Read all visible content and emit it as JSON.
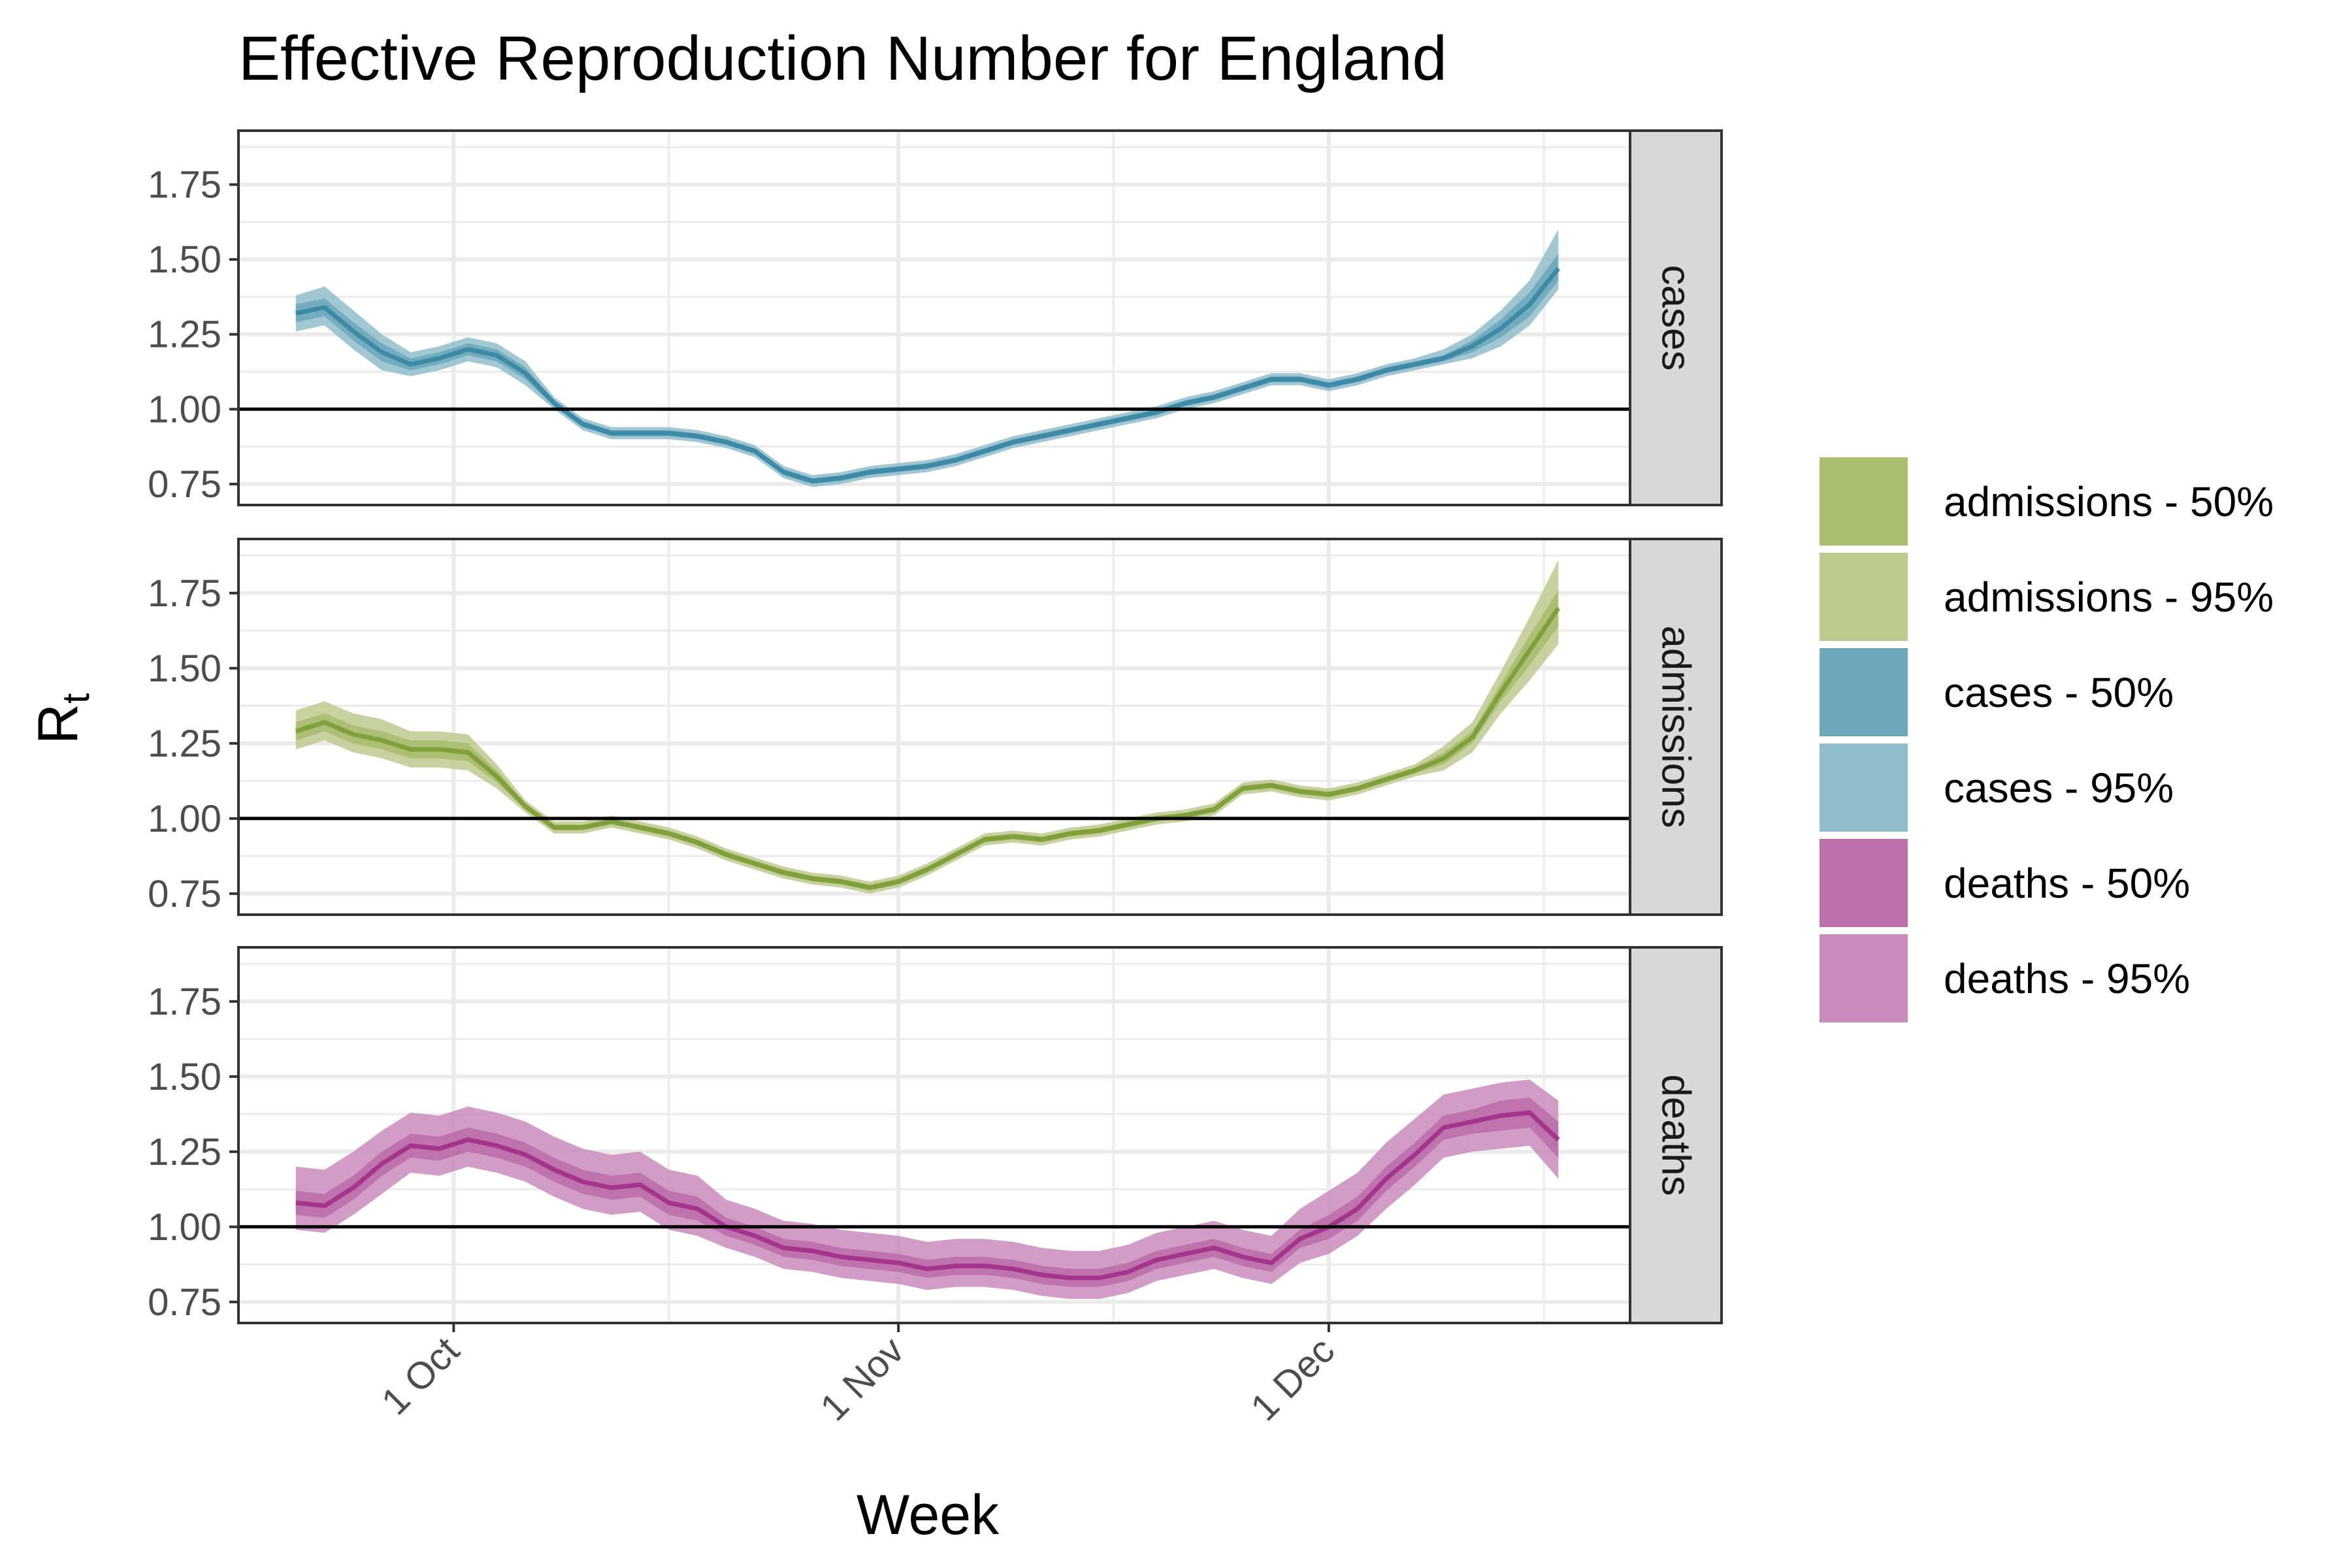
{
  "chart_data": {
    "type": "area",
    "title": "Effective Reproduction Number for England",
    "xlabel": "Week",
    "ylabel": "R",
    "ylabel_subscript": "t",
    "x_ticks": [
      {
        "label": "1 Oct",
        "date": "2021-10-01"
      },
      {
        "label": "1 Nov",
        "date": "2021-11-01"
      },
      {
        "label": "1 Dec",
        "date": "2021-12-01"
      }
    ],
    "x_minor_dates": [
      "2021-09-16",
      "2021-10-16",
      "2021-11-16",
      "2021-12-16"
    ],
    "xlim": [
      "2021-09-16",
      "2021-12-22"
    ],
    "y_ticks": [
      "0.75",
      "1.00",
      "1.25",
      "1.50",
      "1.75"
    ],
    "ylim": [
      0.68,
      1.93
    ],
    "reference_line": 1.0,
    "grid": true,
    "legend_position": "right",
    "panels": [
      {
        "strip": "cases",
        "colors": {
          "p50": "#6fa8bd",
          "p95": "#8fbdca",
          "line": "#3d8aa6"
        },
        "x": [
          "2021-09-20",
          "2021-09-22",
          "2021-09-24",
          "2021-09-26",
          "2021-09-28",
          "2021-09-30",
          "2021-10-02",
          "2021-10-04",
          "2021-10-06",
          "2021-10-08",
          "2021-10-10",
          "2021-10-12",
          "2021-10-14",
          "2021-10-16",
          "2021-10-18",
          "2021-10-20",
          "2021-10-22",
          "2021-10-24",
          "2021-10-26",
          "2021-10-28",
          "2021-10-30",
          "2021-11-01",
          "2021-11-03",
          "2021-11-05",
          "2021-11-07",
          "2021-11-09",
          "2021-11-11",
          "2021-11-13",
          "2021-11-15",
          "2021-11-17",
          "2021-11-19",
          "2021-11-21",
          "2021-11-23",
          "2021-11-25",
          "2021-11-27",
          "2021-11-29",
          "2021-12-01",
          "2021-12-03",
          "2021-12-05",
          "2021-12-07",
          "2021-12-09",
          "2021-12-11",
          "2021-12-13",
          "2021-12-15",
          "2021-12-17"
        ],
        "median": [
          1.32,
          1.34,
          1.26,
          1.19,
          1.15,
          1.17,
          1.2,
          1.18,
          1.12,
          1.02,
          0.95,
          0.92,
          0.92,
          0.92,
          0.91,
          0.89,
          0.86,
          0.79,
          0.76,
          0.77,
          0.79,
          0.8,
          0.81,
          0.83,
          0.86,
          0.89,
          0.91,
          0.93,
          0.95,
          0.97,
          0.99,
          1.02,
          1.04,
          1.07,
          1.1,
          1.1,
          1.08,
          1.1,
          1.13,
          1.15,
          1.17,
          1.21,
          1.27,
          1.35,
          1.47
        ],
        "lo50": [
          1.29,
          1.31,
          1.23,
          1.16,
          1.13,
          1.15,
          1.18,
          1.16,
          1.1,
          1.01,
          0.94,
          0.91,
          0.91,
          0.91,
          0.9,
          0.88,
          0.85,
          0.78,
          0.75,
          0.76,
          0.78,
          0.79,
          0.8,
          0.82,
          0.85,
          0.88,
          0.9,
          0.92,
          0.94,
          0.96,
          0.98,
          1.01,
          1.03,
          1.06,
          1.09,
          1.09,
          1.07,
          1.09,
          1.12,
          1.14,
          1.16,
          1.19,
          1.24,
          1.31,
          1.43
        ],
        "hi50": [
          1.35,
          1.37,
          1.29,
          1.22,
          1.17,
          1.19,
          1.22,
          1.2,
          1.14,
          1.03,
          0.96,
          0.93,
          0.93,
          0.93,
          0.92,
          0.9,
          0.87,
          0.8,
          0.77,
          0.78,
          0.8,
          0.81,
          0.82,
          0.84,
          0.87,
          0.9,
          0.92,
          0.94,
          0.96,
          0.98,
          1.0,
          1.03,
          1.05,
          1.08,
          1.11,
          1.11,
          1.09,
          1.11,
          1.14,
          1.16,
          1.18,
          1.23,
          1.3,
          1.39,
          1.52
        ],
        "lo95": [
          1.26,
          1.28,
          1.2,
          1.13,
          1.11,
          1.13,
          1.16,
          1.14,
          1.08,
          1.0,
          0.93,
          0.9,
          0.9,
          0.9,
          0.89,
          0.87,
          0.84,
          0.77,
          0.74,
          0.75,
          0.77,
          0.78,
          0.79,
          0.81,
          0.84,
          0.87,
          0.89,
          0.91,
          0.93,
          0.95,
          0.97,
          1.0,
          1.02,
          1.05,
          1.08,
          1.08,
          1.06,
          1.08,
          1.11,
          1.13,
          1.15,
          1.17,
          1.21,
          1.28,
          1.4
        ],
        "hi95": [
          1.38,
          1.41,
          1.33,
          1.25,
          1.19,
          1.21,
          1.24,
          1.22,
          1.16,
          1.04,
          0.97,
          0.94,
          0.94,
          0.94,
          0.93,
          0.91,
          0.88,
          0.81,
          0.78,
          0.79,
          0.81,
          0.82,
          0.83,
          0.85,
          0.88,
          0.91,
          0.93,
          0.95,
          0.97,
          0.99,
          1.01,
          1.04,
          1.06,
          1.09,
          1.12,
          1.12,
          1.1,
          1.12,
          1.15,
          1.17,
          1.2,
          1.25,
          1.33,
          1.43,
          1.6
        ]
      },
      {
        "strip": "admissions",
        "colors": {
          "p50": "#a9bd6f",
          "p95": "#bdca8f",
          "line": "#7fa03a"
        },
        "x": [
          "2021-09-20",
          "2021-09-22",
          "2021-09-24",
          "2021-09-26",
          "2021-09-28",
          "2021-09-30",
          "2021-10-02",
          "2021-10-04",
          "2021-10-06",
          "2021-10-08",
          "2021-10-10",
          "2021-10-12",
          "2021-10-14",
          "2021-10-16",
          "2021-10-18",
          "2021-10-20",
          "2021-10-22",
          "2021-10-24",
          "2021-10-26",
          "2021-10-28",
          "2021-10-30",
          "2021-11-01",
          "2021-11-03",
          "2021-11-05",
          "2021-11-07",
          "2021-11-09",
          "2021-11-11",
          "2021-11-13",
          "2021-11-15",
          "2021-11-17",
          "2021-11-19",
          "2021-11-21",
          "2021-11-23",
          "2021-11-25",
          "2021-11-27",
          "2021-11-29",
          "2021-12-01",
          "2021-12-03",
          "2021-12-05",
          "2021-12-07",
          "2021-12-09",
          "2021-12-11",
          "2021-12-13",
          "2021-12-15",
          "2021-12-17"
        ],
        "median": [
          1.29,
          1.32,
          1.28,
          1.26,
          1.23,
          1.23,
          1.22,
          1.14,
          1.04,
          0.97,
          0.97,
          0.99,
          0.97,
          0.95,
          0.92,
          0.88,
          0.85,
          0.82,
          0.8,
          0.79,
          0.77,
          0.79,
          0.83,
          0.88,
          0.93,
          0.94,
          0.93,
          0.95,
          0.96,
          0.98,
          1.0,
          1.01,
          1.03,
          1.1,
          1.11,
          1.09,
          1.08,
          1.1,
          1.13,
          1.16,
          1.2,
          1.27,
          1.42,
          1.56,
          1.7
        ],
        "lo50": [
          1.26,
          1.29,
          1.25,
          1.23,
          1.2,
          1.2,
          1.19,
          1.12,
          1.03,
          0.96,
          0.96,
          0.98,
          0.96,
          0.94,
          0.91,
          0.87,
          0.84,
          0.81,
          0.79,
          0.78,
          0.76,
          0.78,
          0.82,
          0.87,
          0.92,
          0.93,
          0.92,
          0.94,
          0.95,
          0.97,
          0.99,
          1.0,
          1.02,
          1.09,
          1.1,
          1.08,
          1.07,
          1.09,
          1.12,
          1.15,
          1.18,
          1.25,
          1.39,
          1.51,
          1.64
        ],
        "hi50": [
          1.32,
          1.35,
          1.31,
          1.29,
          1.26,
          1.26,
          1.25,
          1.16,
          1.05,
          0.98,
          0.98,
          1.0,
          0.98,
          0.96,
          0.93,
          0.89,
          0.86,
          0.83,
          0.81,
          0.8,
          0.78,
          0.8,
          0.84,
          0.89,
          0.94,
          0.95,
          0.94,
          0.96,
          0.97,
          0.99,
          1.01,
          1.02,
          1.04,
          1.11,
          1.12,
          1.1,
          1.09,
          1.11,
          1.14,
          1.17,
          1.22,
          1.29,
          1.45,
          1.61,
          1.76
        ],
        "lo95": [
          1.23,
          1.26,
          1.22,
          1.2,
          1.17,
          1.17,
          1.16,
          1.1,
          1.02,
          0.95,
          0.95,
          0.97,
          0.95,
          0.93,
          0.9,
          0.86,
          0.83,
          0.8,
          0.78,
          0.77,
          0.75,
          0.77,
          0.81,
          0.86,
          0.91,
          0.92,
          0.91,
          0.93,
          0.94,
          0.96,
          0.98,
          0.99,
          1.01,
          1.08,
          1.09,
          1.07,
          1.06,
          1.08,
          1.11,
          1.14,
          1.16,
          1.22,
          1.35,
          1.46,
          1.58
        ],
        "hi95": [
          1.36,
          1.39,
          1.35,
          1.33,
          1.29,
          1.29,
          1.28,
          1.18,
          1.06,
          0.99,
          0.99,
          1.01,
          0.99,
          0.97,
          0.94,
          0.9,
          0.87,
          0.84,
          0.82,
          0.81,
          0.79,
          0.81,
          0.85,
          0.9,
          0.95,
          0.96,
          0.95,
          0.97,
          0.98,
          1.0,
          1.02,
          1.03,
          1.05,
          1.12,
          1.13,
          1.11,
          1.1,
          1.12,
          1.15,
          1.18,
          1.24,
          1.32,
          1.49,
          1.67,
          1.86
        ]
      },
      {
        "strip": "deaths",
        "colors": {
          "p50": "#bc6faa",
          "p95": "#c98bbc",
          "line": "#a4348c"
        },
        "x": [
          "2021-09-20",
          "2021-09-22",
          "2021-09-24",
          "2021-09-26",
          "2021-09-28",
          "2021-09-30",
          "2021-10-02",
          "2021-10-04",
          "2021-10-06",
          "2021-10-08",
          "2021-10-10",
          "2021-10-12",
          "2021-10-14",
          "2021-10-16",
          "2021-10-18",
          "2021-10-20",
          "2021-10-22",
          "2021-10-24",
          "2021-10-26",
          "2021-10-28",
          "2021-10-30",
          "2021-11-01",
          "2021-11-03",
          "2021-11-05",
          "2021-11-07",
          "2021-11-09",
          "2021-11-11",
          "2021-11-13",
          "2021-11-15",
          "2021-11-17",
          "2021-11-19",
          "2021-11-21",
          "2021-11-23",
          "2021-11-25",
          "2021-11-27",
          "2021-11-29",
          "2021-12-01",
          "2021-12-03",
          "2021-12-05",
          "2021-12-07",
          "2021-12-09",
          "2021-12-11",
          "2021-12-13",
          "2021-12-15",
          "2021-12-17"
        ],
        "median": [
          1.08,
          1.07,
          1.13,
          1.21,
          1.27,
          1.26,
          1.29,
          1.27,
          1.24,
          1.19,
          1.15,
          1.13,
          1.14,
          1.08,
          1.06,
          1.0,
          0.97,
          0.93,
          0.92,
          0.9,
          0.89,
          0.88,
          0.86,
          0.87,
          0.87,
          0.86,
          0.84,
          0.83,
          0.83,
          0.85,
          0.89,
          0.91,
          0.93,
          0.9,
          0.88,
          0.96,
          1.0,
          1.06,
          1.16,
          1.24,
          1.33,
          1.35,
          1.37,
          1.38,
          1.29
        ],
        "lo50": [
          1.04,
          1.03,
          1.09,
          1.17,
          1.23,
          1.22,
          1.25,
          1.23,
          1.2,
          1.15,
          1.11,
          1.09,
          1.1,
          1.04,
          1.02,
          0.97,
          0.94,
          0.9,
          0.89,
          0.87,
          0.86,
          0.85,
          0.83,
          0.84,
          0.84,
          0.83,
          0.81,
          0.8,
          0.8,
          0.82,
          0.86,
          0.88,
          0.9,
          0.87,
          0.85,
          0.93,
          0.96,
          1.02,
          1.12,
          1.2,
          1.29,
          1.31,
          1.32,
          1.33,
          1.23
        ],
        "hi50": [
          1.12,
          1.11,
          1.17,
          1.25,
          1.31,
          1.3,
          1.33,
          1.31,
          1.28,
          1.23,
          1.19,
          1.17,
          1.18,
          1.12,
          1.1,
          1.03,
          1.0,
          0.96,
          0.95,
          0.93,
          0.92,
          0.91,
          0.89,
          0.9,
          0.9,
          0.89,
          0.87,
          0.86,
          0.86,
          0.88,
          0.92,
          0.94,
          0.96,
          0.93,
          0.91,
          0.99,
          1.04,
          1.1,
          1.2,
          1.28,
          1.37,
          1.39,
          1.42,
          1.43,
          1.35
        ],
        "lo95": [
          0.99,
          0.98,
          1.04,
          1.11,
          1.18,
          1.17,
          1.2,
          1.18,
          1.15,
          1.1,
          1.06,
          1.04,
          1.05,
          0.99,
          0.97,
          0.93,
          0.9,
          0.86,
          0.85,
          0.83,
          0.82,
          0.81,
          0.79,
          0.8,
          0.8,
          0.79,
          0.77,
          0.76,
          0.76,
          0.78,
          0.82,
          0.84,
          0.86,
          0.83,
          0.81,
          0.88,
          0.91,
          0.97,
          1.06,
          1.14,
          1.23,
          1.25,
          1.26,
          1.27,
          1.16
        ],
        "hi95": [
          1.2,
          1.19,
          1.25,
          1.32,
          1.38,
          1.37,
          1.4,
          1.38,
          1.35,
          1.3,
          1.26,
          1.24,
          1.25,
          1.19,
          1.17,
          1.09,
          1.06,
          1.02,
          1.01,
          0.99,
          0.98,
          0.97,
          0.95,
          0.96,
          0.96,
          0.95,
          0.93,
          0.92,
          0.92,
          0.94,
          0.98,
          1.0,
          1.02,
          0.99,
          0.97,
          1.06,
          1.12,
          1.18,
          1.28,
          1.36,
          1.44,
          1.46,
          1.48,
          1.49,
          1.42
        ]
      }
    ],
    "legend": [
      {
        "label": "admissions - 50%",
        "color": "#a9bd6f"
      },
      {
        "label": "admissions - 95%",
        "color": "#bdca8f"
      },
      {
        "label": "cases - 50%",
        "color": "#6fa8bd"
      },
      {
        "label": "cases - 95%",
        "color": "#8fbdca"
      },
      {
        "label": "deaths - 50%",
        "color": "#bc6faa"
      },
      {
        "label": "deaths - 95%",
        "color": "#c98bbc"
      }
    ]
  }
}
